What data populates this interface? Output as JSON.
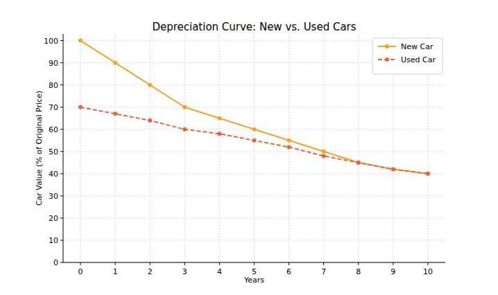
{
  "chart_data": {
    "type": "line",
    "title": "Depreciation Curve: New vs. Used Cars",
    "xlabel": "Years",
    "ylabel": "Car Value (% of Original Price)",
    "x": [
      0,
      1,
      2,
      3,
      4,
      5,
      6,
      7,
      8,
      9,
      10
    ],
    "series": [
      {
        "name": "New Car",
        "color": "#f5a22b",
        "marker": "circle",
        "line_style": "solid",
        "values": [
          100,
          90,
          80,
          70,
          65,
          60,
          55,
          50,
          45,
          42,
          40
        ]
      },
      {
        "name": "Used Car",
        "color": "#e8643b",
        "marker": "circle",
        "line_style": "dashed",
        "values": [
          70,
          67,
          64,
          60,
          58,
          55,
          52,
          48,
          45,
          42,
          40
        ]
      }
    ],
    "xlim": [
      -0.5,
      10.5
    ],
    "ylim": [
      0,
      103
    ],
    "xticks": [
      0,
      1,
      2,
      3,
      4,
      5,
      6,
      7,
      8,
      9,
      10
    ],
    "yticks": [
      0,
      10,
      20,
      30,
      40,
      50,
      60,
      70,
      80,
      90,
      100
    ],
    "grid": true,
    "legend": "upper-right"
  }
}
